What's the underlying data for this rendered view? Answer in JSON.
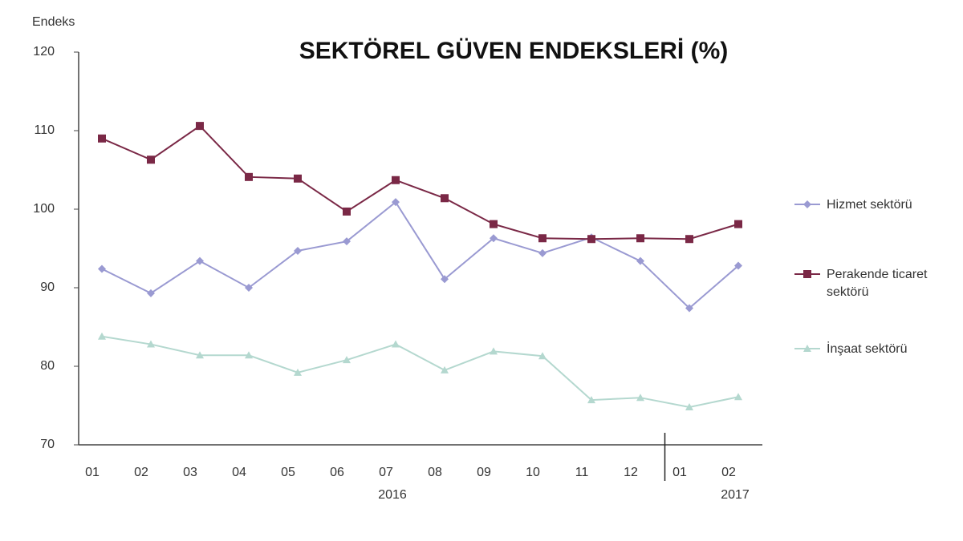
{
  "chart_data": {
    "type": "line",
    "title": "SEKTÖREL GÜVEN ENDEKSLERİ (%)",
    "y_label": "Endeks",
    "categories": [
      "01",
      "02",
      "03",
      "04",
      "05",
      "06",
      "07",
      "08",
      "09",
      "10",
      "11",
      "12",
      "01",
      "02"
    ],
    "year_labels": [
      "2016",
      "2017"
    ],
    "ylim": [
      70,
      120
    ],
    "yticks": [
      70,
      80,
      90,
      100,
      110,
      120
    ],
    "series": [
      {
        "name": "Hizmet sektörü",
        "color": "#9a9ad2",
        "marker": "diamond",
        "values": [
          92.4,
          89.3,
          93.4,
          90.0,
          94.7,
          95.9,
          100.9,
          91.1,
          96.3,
          94.4,
          96.4,
          93.4,
          87.4,
          92.8
        ]
      },
      {
        "name": "Perakende ticaret sektörü",
        "color": "#7a2846",
        "marker": "square",
        "values": [
          109.0,
          106.3,
          110.6,
          104.1,
          103.9,
          99.7,
          103.7,
          101.4,
          98.1,
          96.3,
          96.2,
          96.3,
          96.2,
          98.1
        ]
      },
      {
        "name": "İnşaat sektörü",
        "color": "#b4d8cf",
        "marker": "triangle",
        "values": [
          83.8,
          82.8,
          81.4,
          81.4,
          79.2,
          80.8,
          82.8,
          79.5,
          81.9,
          81.3,
          75.7,
          76.0,
          74.8,
          76.1
        ]
      }
    ]
  }
}
